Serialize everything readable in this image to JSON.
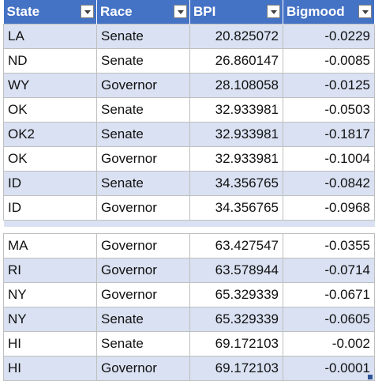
{
  "headers": {
    "state": "State",
    "race": "Race",
    "bpi": "BPI",
    "bigmood": "Bigmood"
  },
  "upper_rows": [
    {
      "state": "LA",
      "race": "Senate",
      "bpi": "20.825072",
      "bigmood": "-0.0229"
    },
    {
      "state": "ND",
      "race": "Senate",
      "bpi": "26.860147",
      "bigmood": "-0.0085"
    },
    {
      "state": "WY",
      "race": "Governor",
      "bpi": "28.108058",
      "bigmood": "-0.0125"
    },
    {
      "state": "OK",
      "race": "Senate",
      "bpi": "32.933981",
      "bigmood": "-0.0503"
    },
    {
      "state": "OK2",
      "race": "Senate",
      "bpi": "32.933981",
      "bigmood": "-0.1817"
    },
    {
      "state": "OK",
      "race": "Governor",
      "bpi": "32.933981",
      "bigmood": "-0.1004"
    },
    {
      "state": "ID",
      "race": "Senate",
      "bpi": "34.356765",
      "bigmood": "-0.0842"
    },
    {
      "state": "ID",
      "race": "Governor",
      "bpi": "34.356765",
      "bigmood": "-0.0968"
    }
  ],
  "lower_rows": [
    {
      "state": "MA",
      "race": "Governor",
      "bpi": "63.427547",
      "bigmood": "-0.0355"
    },
    {
      "state": "RI",
      "race": "Governor",
      "bpi": "63.578944",
      "bigmood": "-0.0714"
    },
    {
      "state": "NY",
      "race": "Governor",
      "bpi": "65.329339",
      "bigmood": "-0.0671"
    },
    {
      "state": "NY",
      "race": "Senate",
      "bpi": "65.329339",
      "bigmood": "-0.0605"
    },
    {
      "state": "HI",
      "race": "Senate",
      "bpi": "69.172103",
      "bigmood": "-0.002"
    },
    {
      "state": "HI",
      "race": "Governor",
      "bpi": "69.172103",
      "bigmood": "-0.0001"
    }
  ],
  "colors": {
    "header_bg": "#4472c4",
    "band_bg": "#d9e1f2",
    "grid": "#bfbfbf"
  }
}
